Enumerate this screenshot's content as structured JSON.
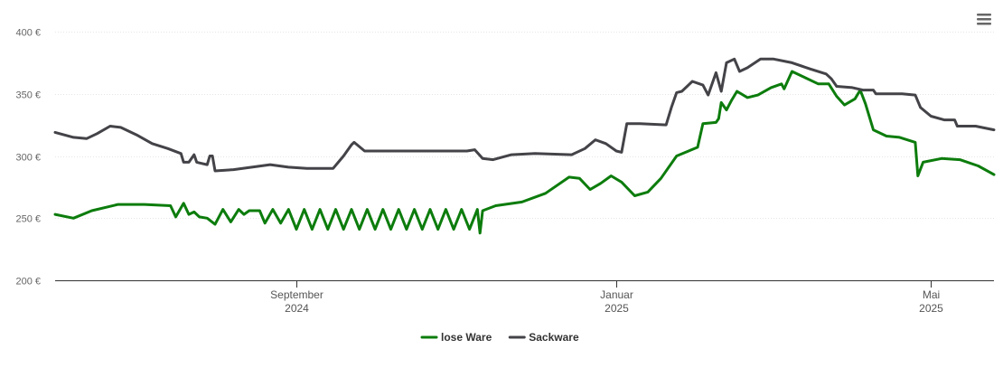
{
  "chart_data": {
    "type": "line",
    "title": "",
    "xlabel": "",
    "ylabel": "",
    "ylim": [
      200,
      400
    ],
    "yticks": [
      200,
      250,
      300,
      350,
      400
    ],
    "ytick_labels": [
      "200 €",
      "250 €",
      "300 €",
      "350 €",
      "400 €"
    ],
    "xlim": [
      "2024-06-01",
      "2025-05-25"
    ],
    "xticks": [
      {
        "date": "2024-09-01",
        "month": "September",
        "year": "2024"
      },
      {
        "date": "2025-01-01",
        "month": "Januar",
        "year": "2025"
      },
      {
        "date": "2025-05-01",
        "month": "Mai",
        "year": "2025"
      }
    ],
    "grid": true,
    "legend_position": "bottom-center",
    "series": [
      {
        "name": "lose Ware",
        "color": "#0c7c0c",
        "points": [
          [
            "2024-06-01",
            253
          ],
          [
            "2024-06-08",
            250
          ],
          [
            "2024-06-15",
            256
          ],
          [
            "2024-06-25",
            261
          ],
          [
            "2024-07-05",
            261
          ],
          [
            "2024-07-15",
            260
          ],
          [
            "2024-07-17",
            251
          ],
          [
            "2024-07-20",
            262
          ],
          [
            "2024-07-22",
            253
          ],
          [
            "2024-07-24",
            255
          ],
          [
            "2024-07-26",
            251
          ],
          [
            "2024-07-29",
            250
          ],
          [
            "2024-08-01",
            245
          ],
          [
            "2024-08-04",
            257
          ],
          [
            "2024-08-07",
            247
          ],
          [
            "2024-08-10",
            257
          ],
          [
            "2024-08-12",
            253
          ],
          [
            "2024-08-14",
            256
          ],
          [
            "2024-08-18",
            256
          ],
          [
            "2024-08-20",
            246
          ],
          [
            "2024-08-23",
            257
          ],
          [
            "2024-08-26",
            246
          ],
          [
            "2024-08-29",
            257
          ],
          [
            "2024-09-01",
            241
          ],
          [
            "2024-09-04",
            257
          ],
          [
            "2024-09-07",
            241
          ],
          [
            "2024-09-10",
            257
          ],
          [
            "2024-09-13",
            241
          ],
          [
            "2024-09-16",
            257
          ],
          [
            "2024-09-19",
            241
          ],
          [
            "2024-09-22",
            257
          ],
          [
            "2024-09-25",
            241
          ],
          [
            "2024-09-28",
            257
          ],
          [
            "2024-10-01",
            241
          ],
          [
            "2024-10-04",
            257
          ],
          [
            "2024-10-07",
            241
          ],
          [
            "2024-10-10",
            257
          ],
          [
            "2024-10-13",
            241
          ],
          [
            "2024-10-16",
            257
          ],
          [
            "2024-10-19",
            241
          ],
          [
            "2024-10-22",
            257
          ],
          [
            "2024-10-25",
            241
          ],
          [
            "2024-10-28",
            257
          ],
          [
            "2024-10-31",
            241
          ],
          [
            "2024-11-03",
            257
          ],
          [
            "2024-11-06",
            241
          ],
          [
            "2024-11-09",
            257
          ],
          [
            "2024-11-10",
            238
          ],
          [
            "2024-11-11",
            256
          ],
          [
            "2024-11-16",
            260
          ],
          [
            "2024-11-26",
            263
          ],
          [
            "2024-12-05",
            270
          ],
          [
            "2024-12-14",
            283
          ],
          [
            "2024-12-18",
            282
          ],
          [
            "2024-12-22",
            273
          ],
          [
            "2024-12-26",
            278
          ],
          [
            "2024-12-30",
            284
          ],
          [
            "2025-01-03",
            279
          ],
          [
            "2025-01-08",
            268
          ],
          [
            "2025-01-13",
            271
          ],
          [
            "2025-01-18",
            282
          ],
          [
            "2025-01-24",
            300
          ],
          [
            "2025-02-01",
            307
          ],
          [
            "2025-02-03",
            326
          ],
          [
            "2025-02-08",
            327
          ],
          [
            "2025-02-09",
            330
          ],
          [
            "2025-02-10",
            343
          ],
          [
            "2025-02-12",
            337
          ],
          [
            "2025-02-14",
            345
          ],
          [
            "2025-02-16",
            352
          ],
          [
            "2025-02-20",
            347
          ],
          [
            "2025-02-24",
            349
          ],
          [
            "2025-03-01",
            355
          ],
          [
            "2025-03-05",
            358
          ],
          [
            "2025-03-06",
            354
          ],
          [
            "2025-03-09",
            368
          ],
          [
            "2025-03-13",
            364
          ],
          [
            "2025-03-19",
            358
          ],
          [
            "2025-03-23",
            358
          ],
          [
            "2025-03-26",
            348
          ],
          [
            "2025-03-29",
            341
          ],
          [
            "2025-04-02",
            346
          ],
          [
            "2025-04-04",
            353
          ],
          [
            "2025-04-06",
            342
          ],
          [
            "2025-04-09",
            321
          ],
          [
            "2025-04-14",
            316
          ],
          [
            "2025-04-19",
            315
          ],
          [
            "2025-04-25",
            311
          ],
          [
            "2025-04-26",
            284
          ],
          [
            "2025-04-28",
            295
          ],
          [
            "2025-05-05",
            298
          ],
          [
            "2025-05-12",
            297
          ],
          [
            "2025-05-19",
            292
          ],
          [
            "2025-05-25",
            285
          ]
        ]
      },
      {
        "name": "Sackware",
        "color": "#434348",
        "points": [
          [
            "2024-06-01",
            319
          ],
          [
            "2024-06-08",
            315
          ],
          [
            "2024-06-13",
            314
          ],
          [
            "2024-06-17",
            318
          ],
          [
            "2024-06-22",
            324
          ],
          [
            "2024-06-26",
            323
          ],
          [
            "2024-07-02",
            317
          ],
          [
            "2024-07-08",
            310
          ],
          [
            "2024-07-14",
            306
          ],
          [
            "2024-07-19",
            302
          ],
          [
            "2024-07-20",
            295
          ],
          [
            "2024-07-22",
            295
          ],
          [
            "2024-07-24",
            301
          ],
          [
            "2024-07-25",
            295
          ],
          [
            "2024-07-27",
            294
          ],
          [
            "2024-07-29",
            293
          ],
          [
            "2024-07-30",
            300
          ],
          [
            "2024-07-31",
            300
          ],
          [
            "2024-08-01",
            288
          ],
          [
            "2024-08-08",
            289
          ],
          [
            "2024-08-15",
            291
          ],
          [
            "2024-08-22",
            293
          ],
          [
            "2024-08-29",
            291
          ],
          [
            "2024-09-05",
            290
          ],
          [
            "2024-09-12",
            290
          ],
          [
            "2024-09-15",
            290
          ],
          [
            "2024-09-19",
            300
          ],
          [
            "2024-09-22",
            309
          ],
          [
            "2024-09-23",
            311
          ],
          [
            "2024-09-27",
            304
          ],
          [
            "2024-10-05",
            304
          ],
          [
            "2024-10-20",
            304
          ],
          [
            "2024-11-01",
            304
          ],
          [
            "2024-11-05",
            304
          ],
          [
            "2024-11-08",
            305
          ],
          [
            "2024-11-11",
            298
          ],
          [
            "2024-11-15",
            297
          ],
          [
            "2024-11-22",
            301
          ],
          [
            "2024-12-01",
            302
          ],
          [
            "2024-12-15",
            301
          ],
          [
            "2024-12-20",
            306
          ],
          [
            "2024-12-24",
            313
          ],
          [
            "2024-12-28",
            310
          ],
          [
            "2025-01-01",
            304
          ],
          [
            "2025-01-03",
            303
          ],
          [
            "2025-01-05",
            326
          ],
          [
            "2025-01-10",
            326
          ],
          [
            "2025-01-20",
            325
          ],
          [
            "2025-01-22",
            339
          ],
          [
            "2025-01-24",
            351
          ],
          [
            "2025-01-26",
            352
          ],
          [
            "2025-01-30",
            360
          ],
          [
            "2025-02-03",
            357
          ],
          [
            "2025-02-05",
            349
          ],
          [
            "2025-02-08",
            367
          ],
          [
            "2025-02-10",
            352
          ],
          [
            "2025-02-12",
            375
          ],
          [
            "2025-02-15",
            378
          ],
          [
            "2025-02-17",
            368
          ],
          [
            "2025-02-20",
            371
          ],
          [
            "2025-02-25",
            378
          ],
          [
            "2025-03-02",
            378
          ],
          [
            "2025-03-09",
            375
          ],
          [
            "2025-03-16",
            370
          ],
          [
            "2025-03-22",
            366
          ],
          [
            "2025-03-24",
            362
          ],
          [
            "2025-03-26",
            356
          ],
          [
            "2025-04-01",
            355
          ],
          [
            "2025-04-05",
            353
          ],
          [
            "2025-04-09",
            353
          ],
          [
            "2025-04-10",
            350
          ],
          [
            "2025-04-20",
            350
          ],
          [
            "2025-04-25",
            349
          ],
          [
            "2025-04-27",
            339
          ],
          [
            "2025-05-01",
            332
          ],
          [
            "2025-05-06",
            329
          ],
          [
            "2025-05-10",
            329
          ],
          [
            "2025-05-11",
            324
          ],
          [
            "2025-05-18",
            324
          ],
          [
            "2025-05-25",
            321
          ]
        ]
      }
    ]
  },
  "toolbar": {
    "menu_icon": "hamburger-menu-icon"
  }
}
